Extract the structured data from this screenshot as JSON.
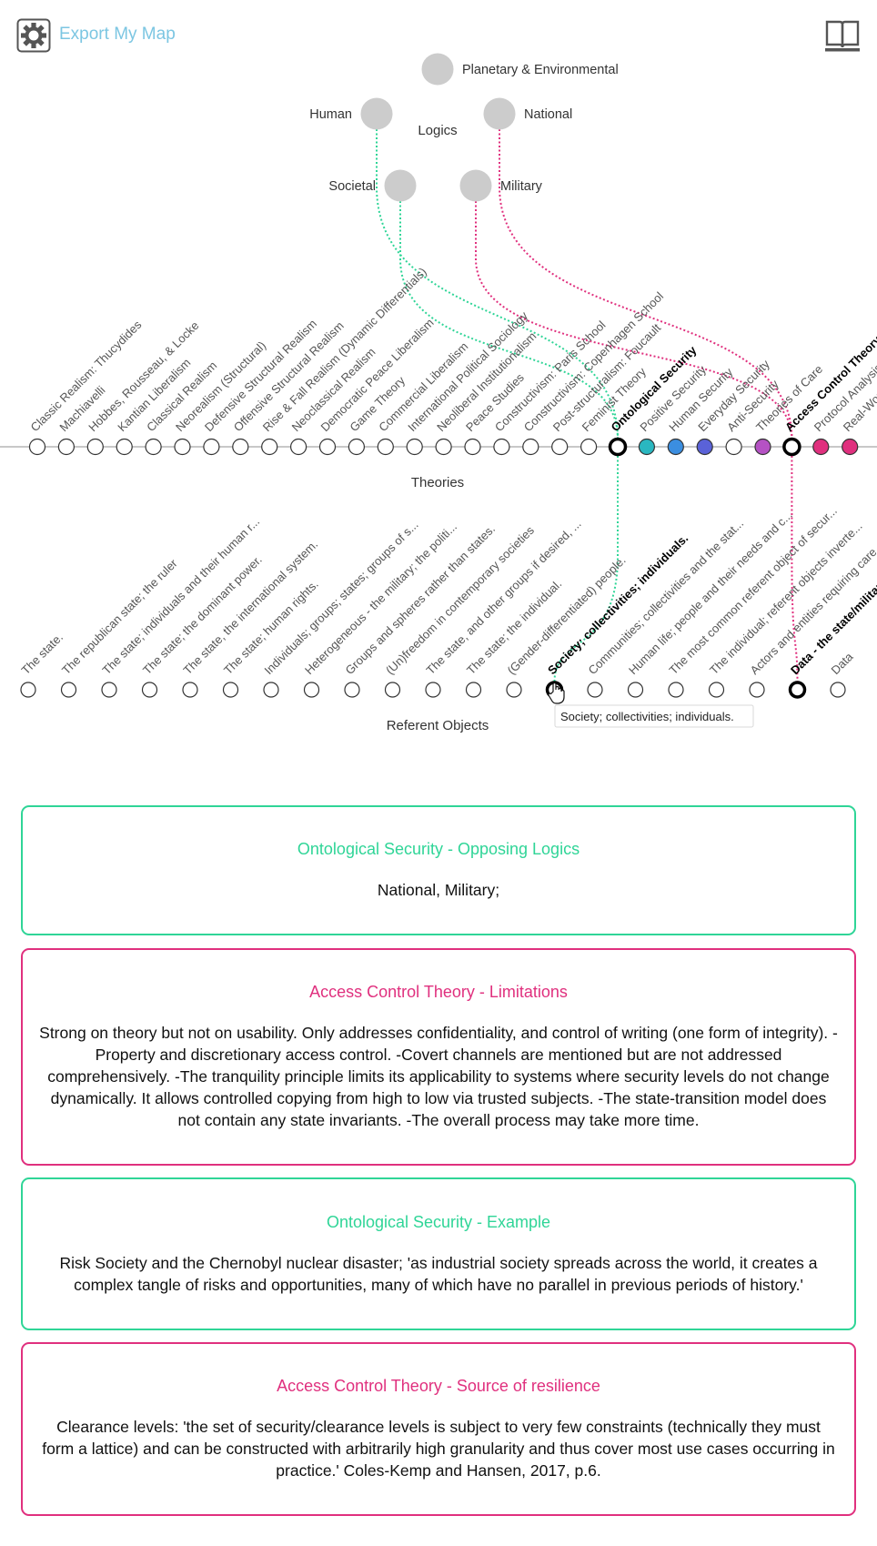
{
  "header": {
    "export_label": "Export My Map",
    "settings_icon": "gear-icon",
    "guide_icon": "book-icon"
  },
  "colors": {
    "green": "#2fd597",
    "pink": "#e0307e",
    "teal": "#2ab7c0",
    "blue": "#3b8ee0",
    "indigo": "#5a62d8",
    "purple": "#b552c4",
    "node_gray": "#cccccc",
    "link_blue": "#7cc6e2"
  },
  "logics": {
    "section_label": "Logics",
    "items": [
      {
        "label": "Planetary & Environmental",
        "label_side": "right"
      },
      {
        "label": "Human",
        "label_side": "left",
        "link": "green"
      },
      {
        "label": "National",
        "label_side": "right",
        "link": "pink"
      },
      {
        "label": "Societal",
        "label_side": "left",
        "link": "green"
      },
      {
        "label": "Military",
        "label_side": "right",
        "link": "pink"
      }
    ]
  },
  "theories": {
    "section_label": "Theories",
    "items": [
      {
        "label": "Classic Realism: Thucydides"
      },
      {
        "label": "Machiavelli"
      },
      {
        "label": "Hobbes, Rousseau, & Locke"
      },
      {
        "label": "Kantian Liberalism"
      },
      {
        "label": "Classical Realism"
      },
      {
        "label": "Neorealism (Structural)"
      },
      {
        "label": "Defensive Structural Realism"
      },
      {
        "label": "Offensive Structural Realism"
      },
      {
        "label": "Rise & Fall Realism (Dynamic Differentials)"
      },
      {
        "label": "Neoclassical Realism"
      },
      {
        "label": "Democratic Peace Liberalism"
      },
      {
        "label": "Game Theory"
      },
      {
        "label": "Commercial Liberalism"
      },
      {
        "label": "International Political Sociology"
      },
      {
        "label": "Neoliberal Institutionalism"
      },
      {
        "label": "Peace Studies"
      },
      {
        "label": "Constructivism: Paris School"
      },
      {
        "label": "Constructivism: Copenhagen School"
      },
      {
        "label": "Post-structuralism: Foucault"
      },
      {
        "label": "Feminist Theory"
      },
      {
        "label": "Ontological Security",
        "selected": true
      },
      {
        "label": "Positive Security",
        "fill": "teal"
      },
      {
        "label": "Human Security",
        "fill": "blue"
      },
      {
        "label": "Everyday Security",
        "fill": "indigo"
      },
      {
        "label": "Anti-Security"
      },
      {
        "label": "Theories of Care",
        "fill": "purple"
      },
      {
        "label": "Access Control Theory",
        "selected": true
      },
      {
        "label": "Protocol Analysis",
        "fill": "pink"
      },
      {
        "label": "Real-World Security",
        "fill": "pink"
      }
    ]
  },
  "referents": {
    "section_label": "Referent Objects",
    "tooltip": "Society; collectivities; individuals.",
    "items": [
      {
        "label": "The state."
      },
      {
        "label": "The republican state; the ruler"
      },
      {
        "label": "The state; individuals and their human r..."
      },
      {
        "label": "The state; the dominant power."
      },
      {
        "label": "The state, the international system."
      },
      {
        "label": "The state; human rights."
      },
      {
        "label": "Individuals; groups; states; groups of s..."
      },
      {
        "label": "Heterogeneous - the military; the politi..."
      },
      {
        "label": "Groups and spheres rather than states."
      },
      {
        "label": "(Un)freedom in contemporary societies"
      },
      {
        "label": "The state, and other groups if desired, ..."
      },
      {
        "label": "The state; the individual."
      },
      {
        "label": "(Gender-differentiated) people."
      },
      {
        "label": "Society; collectivities; individuals.",
        "selected": true
      },
      {
        "label": "Communities; collectivities and the stat..."
      },
      {
        "label": "Human life; people and their needs and c..."
      },
      {
        "label": "The most common referent object of secur..."
      },
      {
        "label": "The individual; referent objects inverte..."
      },
      {
        "label": "Actors and entities requiring care."
      },
      {
        "label": "Data - the state/military",
        "selected": true
      },
      {
        "label": "Data"
      }
    ]
  },
  "cards": [
    {
      "title": "Ontological Security - Opposing Logics",
      "color": "green",
      "body": "National, Military;"
    },
    {
      "title": "Access Control Theory - Limitations",
      "color": "pink",
      "body": "Strong on theory but not on usability. Only addresses confidentiality, and control of writing (one form of integrity). -Property and discretionary access control. -Covert channels are mentioned but are not addressed comprehensively. -The tranquility principle limits its applicability to systems where security levels do not change dynamically. It allows controlled copying from high to low via trusted subjects. -The state-transition model does not contain any state invariants. -The overall process may take more time."
    },
    {
      "title": "Ontological Security - Example",
      "color": "green",
      "body": "Risk Society and the Chernobyl nuclear disaster; 'as industrial society spreads across the world, it creates a complex tangle of risks and opportunities, many of which have no parallel in previous periods of history.'"
    },
    {
      "title": "Access Control Theory - Source of resilience",
      "color": "pink",
      "body": "Clearance levels: 'the set of security/clearance levels is subject to very few constraints (technically they must form a lattice) and can be constructed with arbitrarily high granularity and thus cover most use cases occurring in practice.' Coles-Kemp and Hansen, 2017, p.6."
    }
  ]
}
